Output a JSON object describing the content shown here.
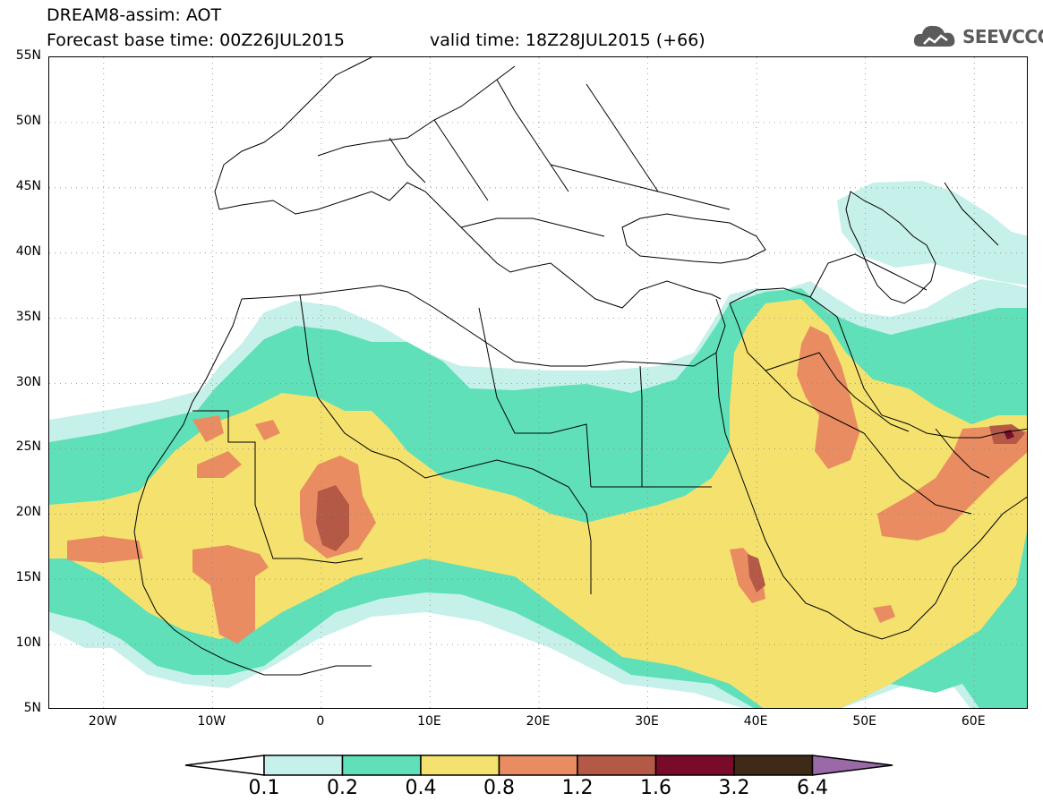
{
  "header": {
    "title_line1": "DREAM8-assim: AOT",
    "title_line2": "Forecast base time: 00Z26JUL2015",
    "valid_time": "valid time: 18Z28JUL2015 (+66)",
    "logo_text": "SEEVCCC",
    "logo_icon": "cloud-logo-icon"
  },
  "axes": {
    "lat_labels": [
      "55N",
      "50N",
      "45N",
      "40N",
      "35N",
      "30N",
      "25N",
      "20N",
      "15N",
      "10N",
      "5N"
    ],
    "lon_labels": [
      "20W",
      "10W",
      "0",
      "10E",
      "20E",
      "30E",
      "40E",
      "50E",
      "60E"
    ],
    "lat_range": [
      5,
      55
    ],
    "lon_range": [
      -25,
      65
    ]
  },
  "colorbar": {
    "labels": [
      "0.1",
      "0.2",
      "0.4",
      "0.8",
      "1.2",
      "1.6",
      "3.2",
      "6.4"
    ],
    "colors": {
      "c01": "#c6f0ea",
      "c02": "#5fe0b8",
      "c04": "#f5e26e",
      "c08": "#ea8c62",
      "c12": "#b45946",
      "c16": "#7a0a2a",
      "c32": "#3f2a18",
      "c64": "#9a6aa8"
    }
  }
}
